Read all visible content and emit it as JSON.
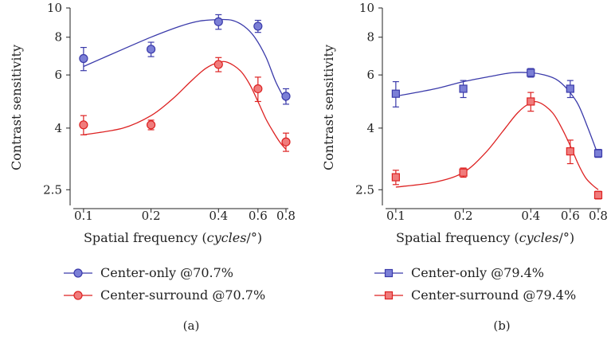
{
  "chart_data": [
    {
      "type": "line",
      "panel_label": "(a)",
      "xlabel_prefix": "Spatial frequency (",
      "xlabel_unit": "cycles",
      "xlabel_suffix": "/°)",
      "ylabel": "Contrast sensitivity",
      "x_scale": "log",
      "y_scale": "log",
      "xlim": [
        0.09,
        0.82
      ],
      "ylim": [
        2.3,
        10
      ],
      "xticks": [
        0.1,
        0.2,
        0.4,
        0.6,
        0.8
      ],
      "xtick_labels": [
        "0.1",
        "0.2",
        "0.4",
        "0.6",
        "0.8"
      ],
      "yticks": [
        2.5,
        4,
        6,
        8,
        10
      ],
      "ytick_labels": [
        "2.5",
        "4",
        "6",
        "8",
        "10"
      ],
      "marker": "circle",
      "legend_position": "bottom",
      "series": [
        {
          "name": "Center-only @70.7%",
          "color": "#3a3aaa",
          "fill": "#7b7fd6",
          "x": [
            0.1,
            0.2,
            0.4,
            0.6,
            0.8
          ],
          "y": [
            6.8,
            7.3,
            9.0,
            8.7,
            5.1
          ],
          "err": [
            0.6,
            0.4,
            0.5,
            0.4,
            0.3
          ],
          "fit_x": [
            0.1,
            0.15,
            0.2,
            0.27,
            0.33,
            0.4,
            0.46,
            0.52,
            0.58,
            0.65,
            0.72,
            0.8
          ],
          "fit_y": [
            6.4,
            7.3,
            8.0,
            8.7,
            9.05,
            9.15,
            9.1,
            8.7,
            8.0,
            6.9,
            5.7,
            4.9
          ]
        },
        {
          "name": "Center-surround @70.7%",
          "color": "#dd2222",
          "fill": "#f07c7c",
          "x": [
            0.1,
            0.2,
            0.4,
            0.6,
            0.8
          ],
          "y": [
            4.1,
            4.1,
            6.5,
            5.4,
            3.6
          ],
          "err": [
            0.3,
            0.15,
            0.35,
            0.5,
            0.25
          ],
          "fit_x": [
            0.1,
            0.15,
            0.2,
            0.25,
            0.3,
            0.35,
            0.4,
            0.44,
            0.5,
            0.55,
            0.6,
            0.65,
            0.7,
            0.75,
            0.8
          ],
          "fit_y": [
            3.8,
            4.0,
            4.4,
            5.0,
            5.7,
            6.3,
            6.6,
            6.6,
            6.2,
            5.6,
            4.9,
            4.3,
            3.9,
            3.6,
            3.4
          ]
        }
      ]
    },
    {
      "type": "line",
      "panel_label": "(b)",
      "xlabel_prefix": "Spatial frequency (",
      "xlabel_unit": "cycles",
      "xlabel_suffix": "/°)",
      "ylabel": "Contrast sensitivity",
      "x_scale": "log",
      "y_scale": "log",
      "xlim": [
        0.09,
        0.82
      ],
      "ylim": [
        2.3,
        10
      ],
      "xticks": [
        0.1,
        0.2,
        0.4,
        0.6,
        0.8
      ],
      "xtick_labels": [
        "0.1",
        "0.2",
        "0.4",
        "0.6",
        "0.8"
      ],
      "yticks": [
        2.5,
        4,
        6,
        8,
        10
      ],
      "ytick_labels": [
        "2.5",
        "4",
        "6",
        "8",
        "10"
      ],
      "marker": "square",
      "legend_position": "bottom",
      "series": [
        {
          "name": "Center-only @79.4%",
          "color": "#3a3aaa",
          "fill": "#7b7fd6",
          "x": [
            0.1,
            0.2,
            0.4,
            0.6,
            0.8
          ],
          "y": [
            5.2,
            5.4,
            6.1,
            5.4,
            3.3
          ],
          "err": [
            0.5,
            0.35,
            0.2,
            0.35,
            0.1
          ],
          "fit_x": [
            0.1,
            0.15,
            0.2,
            0.27,
            0.33,
            0.4,
            0.46,
            0.52,
            0.58,
            0.65,
            0.72,
            0.8
          ],
          "fit_y": [
            5.1,
            5.4,
            5.7,
            5.95,
            6.1,
            6.1,
            6.0,
            5.8,
            5.4,
            4.8,
            4.0,
            3.25
          ]
        },
        {
          "name": "Center-surround @79.4%",
          "color": "#dd2222",
          "fill": "#f07c7c",
          "x": [
            0.1,
            0.2,
            0.4,
            0.6,
            0.8
          ],
          "y": [
            2.75,
            2.85,
            4.9,
            3.35,
            2.4
          ],
          "err": [
            0.15,
            0.1,
            0.35,
            0.3,
            0.07
          ],
          "fit_x": [
            0.1,
            0.15,
            0.2,
            0.25,
            0.3,
            0.35,
            0.4,
            0.44,
            0.5,
            0.55,
            0.6,
            0.65,
            0.7,
            0.75,
            0.8
          ],
          "fit_y": [
            2.55,
            2.65,
            2.85,
            3.3,
            3.9,
            4.5,
            4.85,
            4.85,
            4.5,
            4.0,
            3.5,
            3.05,
            2.75,
            2.6,
            2.5
          ]
        }
      ]
    }
  ]
}
